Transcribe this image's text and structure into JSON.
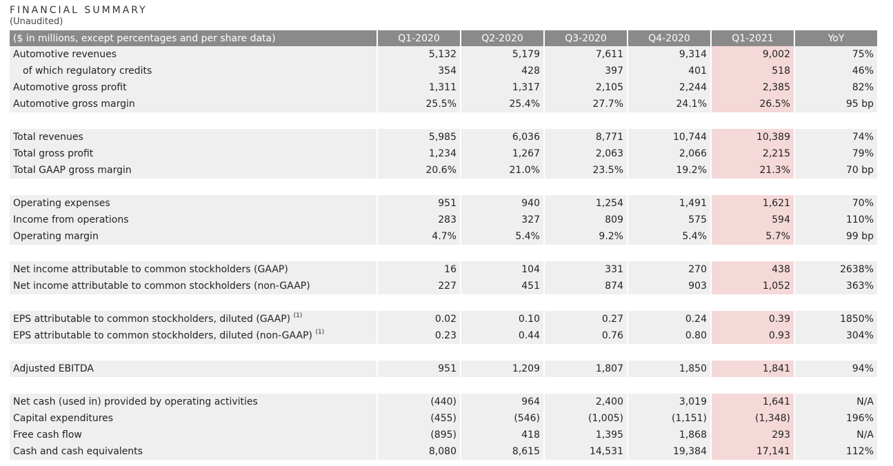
{
  "title": "FINANCIAL SUMMARY",
  "subtitle": "(Unaudited)",
  "header": {
    "label": "($ in millions, except percentages and per share data)",
    "columns": [
      "Q1-2020",
      "Q2-2020",
      "Q3-2020",
      "Q4-2020",
      "Q1-2021",
      "YoY"
    ]
  },
  "highlight_color": "#f5d8d8",
  "groups": [
    {
      "rows": [
        {
          "label": "Automotive revenues",
          "indent": false,
          "values": [
            "5,132",
            "5,179",
            "7,611",
            "9,314",
            "9,002",
            "75%"
          ]
        },
        {
          "label": "of which regulatory credits",
          "indent": true,
          "values": [
            "354",
            "428",
            "397",
            "401",
            "518",
            "46%"
          ]
        },
        {
          "label": "Automotive gross profit",
          "indent": false,
          "values": [
            "1,311",
            "1,317",
            "2,105",
            "2,244",
            "2,385",
            "82%"
          ]
        },
        {
          "label": "Automotive gross margin",
          "indent": false,
          "values": [
            "25.5%",
            "25.4%",
            "27.7%",
            "24.1%",
            "26.5%",
            "95 bp"
          ]
        }
      ]
    },
    {
      "rows": [
        {
          "label": "Total revenues",
          "indent": false,
          "values": [
            "5,985",
            "6,036",
            "8,771",
            "10,744",
            "10,389",
            "74%"
          ]
        },
        {
          "label": "Total gross profit",
          "indent": false,
          "values": [
            "1,234",
            "1,267",
            "2,063",
            "2,066",
            "2,215",
            "79%"
          ]
        },
        {
          "label": "Total GAAP gross margin",
          "indent": false,
          "values": [
            "20.6%",
            "21.0%",
            "23.5%",
            "19.2%",
            "21.3%",
            "70 bp"
          ]
        }
      ]
    },
    {
      "rows": [
        {
          "label": "Operating expenses",
          "indent": false,
          "values": [
            "951",
            "940",
            "1,254",
            "1,491",
            "1,621",
            "70%"
          ]
        },
        {
          "label": "Income from operations",
          "indent": false,
          "values": [
            "283",
            "327",
            "809",
            "575",
            "594",
            "110%"
          ]
        },
        {
          "label": "Operating margin",
          "indent": false,
          "values": [
            "4.7%",
            "5.4%",
            "9.2%",
            "5.4%",
            "5.7%",
            "99 bp"
          ]
        }
      ]
    },
    {
      "rows": [
        {
          "label": "Net income attributable to common stockholders (GAAP)",
          "indent": false,
          "values": [
            "16",
            "104",
            "331",
            "270",
            "438",
            "2638%"
          ]
        },
        {
          "label": "Net income attributable to common stockholders (non-GAAP)",
          "indent": false,
          "values": [
            "227",
            "451",
            "874",
            "903",
            "1,052",
            "363%"
          ]
        }
      ]
    },
    {
      "rows": [
        {
          "label": "EPS attributable to common stockholders, diluted (GAAP)",
          "note": "(1)",
          "indent": false,
          "values": [
            "0.02",
            "0.10",
            "0.27",
            "0.24",
            "0.39",
            "1850%"
          ]
        },
        {
          "label": "EPS attributable to common stockholders, diluted (non-GAAP)",
          "note": "(1)",
          "indent": false,
          "values": [
            "0.23",
            "0.44",
            "0.76",
            "0.80",
            "0.93",
            "304%"
          ]
        }
      ]
    },
    {
      "rows": [
        {
          "label": "Adjusted EBITDA",
          "indent": false,
          "values": [
            "951",
            "1,209",
            "1,807",
            "1,850",
            "1,841",
            "94%"
          ]
        }
      ]
    },
    {
      "rows": [
        {
          "label": "Net cash (used in) provided by operating activities",
          "indent": false,
          "values": [
            "(440)",
            "964",
            "2,400",
            "3,019",
            "1,641",
            "N/A"
          ]
        },
        {
          "label": "Capital expenditures",
          "indent": false,
          "values": [
            "(455)",
            "(546)",
            "(1,005)",
            "(1,151)",
            "(1,348)",
            "196%"
          ]
        },
        {
          "label": "Free cash flow",
          "indent": false,
          "values": [
            "(895)",
            "418",
            "1,395",
            "1,868",
            "293",
            "N/A"
          ]
        },
        {
          "label": "Cash and cash equivalents",
          "indent": false,
          "values": [
            "8,080",
            "8,615",
            "14,531",
            "19,384",
            "17,141",
            "112%"
          ]
        }
      ]
    }
  ]
}
